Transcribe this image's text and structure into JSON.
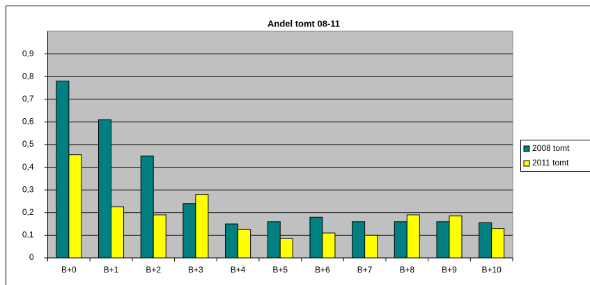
{
  "chart_data": {
    "type": "bar",
    "title": "Andel tomt 08-11",
    "categories": [
      "B+0",
      "B+1",
      "B+2",
      "B+3",
      "B+4",
      "B+5",
      "B+6",
      "B+7",
      "B+8",
      "B+9",
      "B+10"
    ],
    "series": [
      {
        "name": "2008 tomt",
        "color": "#008080",
        "values": [
          0.78,
          0.61,
          0.45,
          0.24,
          0.15,
          0.16,
          0.18,
          0.16,
          0.16,
          0.16,
          0.155
        ]
      },
      {
        "name": "2011 tomt",
        "color": "#ffff00",
        "values": [
          0.455,
          0.225,
          0.19,
          0.28,
          0.125,
          0.085,
          0.11,
          0.1,
          0.19,
          0.185,
          0.13
        ]
      }
    ],
    "ylim": [
      0,
      1
    ],
    "yticks": [
      0,
      {
        "value": 0.1,
        "label": "0,1"
      },
      {
        "value": 0.2,
        "label": "0,2"
      },
      {
        "value": 0.3,
        "label": "0,3"
      },
      {
        "value": 0.4,
        "label": "0,4"
      },
      {
        "value": 0.5,
        "label": "0,5"
      },
      {
        "value": 0.6,
        "label": "0,6"
      },
      {
        "value": 0.7,
        "label": "0,7"
      },
      {
        "value": 0.8,
        "label": "0,8"
      },
      {
        "value": 0.9,
        "label": "0,9"
      }
    ],
    "grid": true,
    "legend": "right"
  }
}
